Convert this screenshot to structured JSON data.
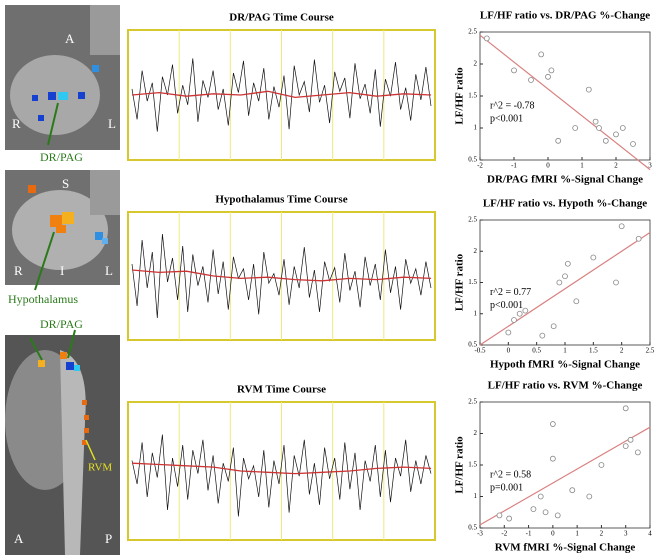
{
  "images": {
    "top": {
      "labels": [
        "A",
        "R",
        "L"
      ],
      "structure": "DR/PAG"
    },
    "middle": {
      "labels": [
        "S",
        "R",
        "I",
        "L"
      ],
      "structure": "Hypothalamus"
    },
    "bottom": {
      "labels": [
        "A",
        "P"
      ],
      "structures": [
        "DR/PAG",
        "RVM"
      ]
    }
  },
  "chart_data": [
    {
      "type": "line",
      "title": "DR/PAG Time Course",
      "ylim": [
        0,
        100
      ],
      "series": [
        {
          "color": "#111111",
          "values": [
            55,
            30,
            70,
            45,
            60,
            20,
            65,
            50,
            75,
            35,
            58,
            42,
            80,
            28,
            62,
            48,
            70,
            38,
            55,
            25,
            68,
            52,
            78,
            33,
            60,
            45,
            72,
            30,
            57,
            40,
            66,
            22,
            74,
            50,
            61,
            36,
            79,
            44,
            58,
            27,
            69,
            53,
            64,
            31,
            76,
            47,
            59,
            35,
            71,
            24,
            63,
            49,
            77,
            38,
            56,
            29,
            67,
            46,
            73,
            41
          ]
        },
        {
          "color": "#cc3333",
          "values": [
            50,
            52,
            49,
            51,
            50,
            53,
            48,
            50,
            52,
            49,
            51,
            50
          ]
        }
      ]
    },
    {
      "type": "line",
      "title": "Hypothalamus Time Course",
      "ylim": [
        0,
        100
      ],
      "series": [
        {
          "color": "#111111",
          "values": [
            60,
            25,
            80,
            40,
            70,
            15,
            85,
            45,
            65,
            30,
            75,
            20,
            68,
            42,
            58,
            28,
            72,
            35,
            62,
            22,
            66,
            48,
            56,
            30,
            60,
            18,
            70,
            44,
            52,
            34,
            64,
            26,
            58,
            40,
            74,
            32,
            55,
            20,
            62,
            46,
            57,
            28,
            69,
            38,
            54,
            24,
            66,
            42,
            60,
            30,
            72,
            36,
            58,
            22,
            64,
            44,
            56,
            34,
            62,
            40
          ]
        },
        {
          "color": "#cc3333",
          "values": [
            55,
            53,
            54,
            50,
            48,
            49,
            47,
            46,
            48,
            47,
            49,
            48
          ]
        }
      ]
    },
    {
      "type": "line",
      "title": "RVM Time Course",
      "ylim": [
        0,
        100
      ],
      "series": [
        {
          "color": "#111111",
          "values": [
            58,
            40,
            72,
            30,
            64,
            45,
            78,
            20,
            60,
            38,
            70,
            28,
            66,
            48,
            74,
            35,
            62,
            25,
            56,
            42,
            68,
            15,
            60,
            44,
            54,
            30,
            66,
            22,
            58,
            40,
            70,
            18,
            62,
            46,
            74,
            32,
            56,
            24,
            68,
            44,
            60,
            28,
            72,
            36,
            64,
            20,
            58,
            42,
            70,
            30,
            66,
            26,
            60,
            46,
            74,
            34,
            58,
            40,
            62,
            48
          ]
        },
        {
          "color": "#cc3333",
          "values": [
            56,
            55,
            54,
            53,
            50,
            49,
            48,
            49,
            50,
            52,
            53,
            52
          ]
        }
      ]
    },
    {
      "type": "scatter",
      "title": "LF/HF ratio vs. DR/PAG %-Change",
      "x_label": "DR/PAG fMRI %-Signal Change",
      "y_label": "LF/HF ratio",
      "annotations": [
        "r^2 = -0.78",
        "p<0.001"
      ],
      "xlim": [
        -2,
        3
      ],
      "ylim": [
        0.5,
        2.5
      ],
      "xticks": [
        -2,
        -1,
        0,
        1,
        2,
        3
      ],
      "yticks": [
        0.5,
        1,
        1.5,
        2,
        2.5
      ],
      "x": [
        -1.8,
        -1,
        -0.5,
        -0.2,
        0,
        0.1,
        0.8,
        1.2,
        1.4,
        1.5,
        2,
        2.2,
        2.5,
        1.7,
        0.3
      ],
      "values": [
        2.4,
        1.9,
        1.75,
        2.15,
        1.8,
        1.9,
        1.0,
        1.6,
        1.1,
        1.0,
        0.9,
        1.0,
        0.75,
        0.8,
        0.8
      ],
      "fit": {
        "x": [
          -2,
          3
        ],
        "values": [
          2.45,
          0.35
        ]
      },
      "color": "#888888",
      "fit_color": "#d98080"
    },
    {
      "type": "scatter",
      "title": "LF/HF ratio vs. Hypoth %-Change",
      "x_label": "Hypoth fMRI %-Signal Change",
      "y_label": "LF/HF ratio",
      "annotations": [
        "r^2 = 0.77",
        "p<0.001"
      ],
      "xlim": [
        -0.5,
        2.5
      ],
      "ylim": [
        0.5,
        2.5
      ],
      "xticks": [
        -0.5,
        0,
        0.5,
        1,
        1.5,
        2,
        2.5
      ],
      "yticks": [
        0.5,
        1,
        1.5,
        2,
        2.5
      ],
      "x": [
        0,
        0.1,
        0.2,
        0.3,
        0.8,
        0.9,
        1.0,
        1.05,
        1.2,
        1.5,
        1.9,
        2.0,
        2.3,
        0.6
      ],
      "values": [
        0.7,
        0.9,
        1.0,
        1.05,
        0.8,
        1.5,
        1.6,
        1.8,
        1.2,
        1.9,
        1.5,
        2.4,
        2.2,
        0.65
      ],
      "fit": {
        "x": [
          -0.5,
          2.5
        ],
        "values": [
          0.5,
          2.3
        ]
      },
      "color": "#888888",
      "fit_color": "#d98080"
    },
    {
      "type": "scatter",
      "title": "LF/HF ratio vs. RVM %-Change",
      "x_label": "RVM fMRI %-Signal Change",
      "y_label": "LF/HF ratio",
      "annotations": [
        "r^2 = 0.58",
        "p=0.001"
      ],
      "xlim": [
        -3,
        4
      ],
      "ylim": [
        0.5,
        2.5
      ],
      "xticks": [
        -3,
        -2,
        -1,
        0,
        1,
        2,
        3,
        4
      ],
      "yticks": [
        0.5,
        1,
        1.5,
        2,
        2.5
      ],
      "x": [
        -2.2,
        -1.8,
        -0.8,
        -0.5,
        0,
        0,
        0.2,
        0.8,
        1.5,
        2,
        3,
        3.2,
        3.5,
        3,
        -0.3
      ],
      "values": [
        0.7,
        0.65,
        0.8,
        1.0,
        1.6,
        2.15,
        0.7,
        1.1,
        1.0,
        1.5,
        1.8,
        1.9,
        1.7,
        2.4,
        0.75
      ],
      "fit": {
        "x": [
          -3,
          4
        ],
        "values": [
          0.55,
          2.1
        ]
      },
      "color": "#888888",
      "fit_color": "#d98080"
    }
  ]
}
